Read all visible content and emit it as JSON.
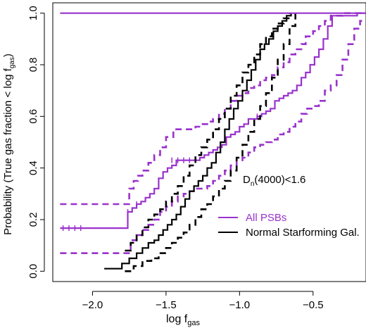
{
  "chart_data": {
    "type": "line",
    "title": "",
    "xlabel": "log f",
    "xlabel_sub": "gas",
    "ylabel": "Probability (True gas fraction < log f",
    "ylabel_sub": "gas",
    "ylabel_tail": ")",
    "xlim": [
      -2.27,
      -0.14
    ],
    "ylim": [
      -0.04,
      1.04
    ],
    "xticks": [
      -2.0,
      -1.5,
      -1.0,
      -0.5
    ],
    "xtick_labels": [
      "−2.0",
      "−1.5",
      "−1.0",
      "−0.5"
    ],
    "yticks": [
      0.0,
      0.2,
      0.4,
      0.6,
      0.8,
      1.0
    ],
    "ytick_labels": [
      "0.0",
      "0.2",
      "0.4",
      "0.6",
      "0.8",
      "1.0"
    ],
    "grid": false,
    "annotation": {
      "main": "D",
      "sub": "n",
      "rest": "(4000)<1.6"
    },
    "legend": {
      "placement": "right",
      "entries": [
        {
          "label": "All PSBs",
          "color": "#9932cc"
        },
        {
          "label": "Normal Starforming Gal.",
          "color": "#000000"
        }
      ]
    },
    "series": [
      {
        "name": "All PSBs",
        "color": "#9932cc",
        "style": "solid",
        "censored_marks": true,
        "x": [
          -2.22,
          -1.77,
          -1.76,
          -1.73,
          -1.7,
          -1.67,
          -1.64,
          -1.61,
          -1.58,
          -1.55,
          -1.52,
          -1.49,
          -1.46,
          -1.43,
          -1.4,
          -1.36,
          -1.33,
          -1.3,
          -1.27,
          -1.24,
          -1.21,
          -1.18,
          -1.15,
          -1.12,
          -1.09,
          -1.06,
          -1.03,
          -1.0,
          -0.97,
          -0.94,
          -0.91,
          -0.88,
          -0.85,
          -0.82,
          -0.79,
          -0.76,
          -0.73,
          -0.7,
          -0.67,
          -0.64,
          -0.61,
          -0.58,
          -0.55,
          -0.52,
          -0.49,
          -0.46,
          -0.43,
          -0.4,
          -0.37,
          -0.34,
          -0.2,
          -0.14
        ],
        "y": [
          0.167,
          0.167,
          0.23,
          0.245,
          0.26,
          0.27,
          0.285,
          0.3,
          0.32,
          0.36,
          0.385,
          0.4,
          0.41,
          0.43,
          0.43,
          0.43,
          0.43,
          0.43,
          0.44,
          0.45,
          0.46,
          0.47,
          0.48,
          0.49,
          0.52,
          0.53,
          0.54,
          0.56,
          0.57,
          0.59,
          0.59,
          0.6,
          0.61,
          0.62,
          0.63,
          0.66,
          0.67,
          0.68,
          0.69,
          0.7,
          0.72,
          0.75,
          0.77,
          0.8,
          0.83,
          0.86,
          0.9,
          0.95,
          0.99,
          0.99,
          1.0,
          1.0
        ]
      },
      {
        "name": "All PSBs upper",
        "color": "#9932cc",
        "style": "dashed",
        "censored_marks": false,
        "x": [
          -2.22,
          -1.78,
          -1.75,
          -1.72,
          -1.69,
          -1.66,
          -1.62,
          -1.58,
          -1.54,
          -1.5,
          -1.45,
          -1.4,
          -1.35,
          -1.3,
          -1.26,
          -1.22,
          -1.18,
          -1.14,
          -1.1,
          -1.06,
          -1.02,
          -0.98,
          -0.94,
          -0.9,
          -0.86,
          -0.82,
          -0.78,
          -0.74,
          -0.7,
          -0.66,
          -0.62,
          -0.58,
          -0.55,
          -0.5,
          -0.46,
          -0.42,
          -0.38,
          -0.34,
          -0.3,
          -0.14
        ],
        "y": [
          0.26,
          0.26,
          0.32,
          0.35,
          0.37,
          0.39,
          0.42,
          0.45,
          0.48,
          0.52,
          0.55,
          0.55,
          0.55,
          0.56,
          0.57,
          0.58,
          0.59,
          0.61,
          0.63,
          0.66,
          0.68,
          0.69,
          0.71,
          0.72,
          0.74,
          0.75,
          0.76,
          0.79,
          0.81,
          0.84,
          0.86,
          0.88,
          0.91,
          0.93,
          0.95,
          0.97,
          0.99,
          0.99,
          1.0,
          1.0
        ]
      },
      {
        "name": "All PSBs lower",
        "color": "#9932cc",
        "style": "dashed",
        "censored_marks": false,
        "x": [
          -2.22,
          -1.77,
          -1.74,
          -1.7,
          -1.66,
          -1.62,
          -1.58,
          -1.54,
          -1.5,
          -1.46,
          -1.42,
          -1.38,
          -1.34,
          -1.3,
          -1.26,
          -1.22,
          -1.18,
          -1.14,
          -1.1,
          -1.06,
          -1.02,
          -0.98,
          -0.94,
          -0.9,
          -0.86,
          -0.82,
          -0.78,
          -0.74,
          -0.7,
          -0.66,
          -0.62,
          -0.58,
          -0.54,
          -0.5,
          -0.46,
          -0.42,
          -0.38,
          -0.34,
          -0.3,
          -0.26,
          -0.22,
          -0.18,
          -0.14
        ],
        "y": [
          0.07,
          0.07,
          0.12,
          0.14,
          0.16,
          0.18,
          0.2,
          0.23,
          0.25,
          0.27,
          0.29,
          0.3,
          0.31,
          0.32,
          0.32,
          0.33,
          0.35,
          0.37,
          0.39,
          0.41,
          0.43,
          0.44,
          0.46,
          0.48,
          0.49,
          0.5,
          0.51,
          0.53,
          0.54,
          0.56,
          0.58,
          0.61,
          0.63,
          0.64,
          0.66,
          0.7,
          0.72,
          0.76,
          0.82,
          0.88,
          0.94,
          0.97,
          0.97
        ]
      },
      {
        "name": "Normal Starforming Gal.",
        "color": "#000000",
        "style": "solid",
        "censored_marks": false,
        "x": [
          -1.92,
          -1.8,
          -1.75,
          -1.7,
          -1.66,
          -1.62,
          -1.58,
          -1.55,
          -1.52,
          -1.49,
          -1.46,
          -1.43,
          -1.4,
          -1.37,
          -1.34,
          -1.31,
          -1.28,
          -1.25,
          -1.22,
          -1.19,
          -1.16,
          -1.13,
          -1.1,
          -1.07,
          -1.04,
          -1.01,
          -0.98,
          -0.95,
          -0.92,
          -0.89,
          -0.86,
          -0.83,
          -0.8,
          -0.77,
          -0.74,
          -0.71,
          -0.68,
          -0.65
        ],
        "y": [
          0.01,
          0.03,
          0.05,
          0.07,
          0.09,
          0.11,
          0.12,
          0.14,
          0.16,
          0.18,
          0.2,
          0.22,
          0.25,
          0.28,
          0.31,
          0.33,
          0.35,
          0.37,
          0.4,
          0.42,
          0.46,
          0.5,
          0.55,
          0.59,
          0.63,
          0.66,
          0.7,
          0.74,
          0.78,
          0.82,
          0.86,
          0.88,
          0.9,
          0.93,
          0.95,
          0.97,
          0.99,
          1.0
        ]
      },
      {
        "name": "Normal Starforming Gal. upper",
        "color": "#000000",
        "style": "dashed",
        "censored_marks": false,
        "x": [
          -1.78,
          -1.74,
          -1.7,
          -1.66,
          -1.62,
          -1.58,
          -1.54,
          -1.5,
          -1.46,
          -1.42,
          -1.38,
          -1.34,
          -1.3,
          -1.26,
          -1.22,
          -1.18,
          -1.14,
          -1.1,
          -1.06,
          -1.02,
          -0.98,
          -0.94,
          -0.9,
          -0.86,
          -0.82,
          -0.78,
          -0.74,
          -0.7,
          -0.66
        ],
        "y": [
          0.08,
          0.11,
          0.14,
          0.17,
          0.2,
          0.22,
          0.24,
          0.27,
          0.3,
          0.33,
          0.37,
          0.41,
          0.45,
          0.48,
          0.51,
          0.55,
          0.59,
          0.63,
          0.68,
          0.72,
          0.77,
          0.8,
          0.84,
          0.88,
          0.91,
          0.94,
          0.96,
          0.98,
          1.0
        ]
      },
      {
        "name": "Normal Starforming Gal. lower",
        "color": "#000000",
        "style": "dashed",
        "censored_marks": false,
        "x": [
          -1.78,
          -1.72,
          -1.66,
          -1.6,
          -1.55,
          -1.5,
          -1.46,
          -1.42,
          -1.38,
          -1.34,
          -1.3,
          -1.26,
          -1.22,
          -1.18,
          -1.14,
          -1.1,
          -1.06,
          -1.02,
          -0.98,
          -0.94,
          -0.9,
          -0.86,
          -0.82,
          -0.78,
          -0.74,
          -0.7,
          -0.66,
          -0.62
        ],
        "y": [
          0.0,
          0.02,
          0.04,
          0.05,
          0.07,
          0.09,
          0.11,
          0.13,
          0.15,
          0.18,
          0.21,
          0.24,
          0.26,
          0.29,
          0.32,
          0.35,
          0.39,
          0.44,
          0.49,
          0.54,
          0.59,
          0.64,
          0.69,
          0.75,
          0.82,
          0.88,
          0.95,
          1.0
        ]
      },
      {
        "name": "Top reference line",
        "color": "#9932cc",
        "style": "solid",
        "censored_marks": false,
        "x": [
          -2.22,
          -0.14
        ],
        "y": [
          1.0,
          1.0
        ]
      }
    ]
  }
}
